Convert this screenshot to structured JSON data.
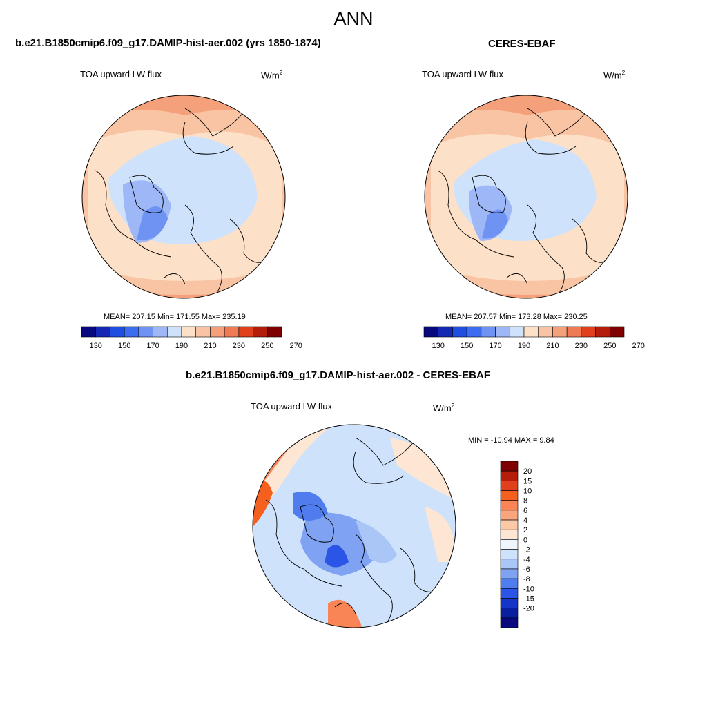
{
  "page": {
    "season": "ANN",
    "colors": {
      "deep_blue": "#08087f",
      "blue": "#1f4fe0",
      "light_blue": "#cfe2fb",
      "neutral": "#f4f9ff",
      "light_orange": "#fde0c8",
      "orange": "#f4a07a",
      "red": "#e0401c",
      "deep_red": "#7f0000",
      "coast": "#000000"
    }
  },
  "panels": {
    "model": {
      "title": "b.e21.B1850cmip6.f09_g17.DAMIP-hist-aer.002 (yrs 1850-1874)",
      "variable": "TOA upward LW flux",
      "units_base": "W/m",
      "units_exp": "2",
      "stats": "MEAN= 207.15  Min= 171.55  Max= 235.19",
      "colorbar_colors": [
        "#08087f",
        "#1428b4",
        "#1f4fe0",
        "#3c6df0",
        "#6f93f3",
        "#9db7f7",
        "#cfe2fb",
        "#fde0c8",
        "#f9c4a4",
        "#f4a07a",
        "#ef7a54",
        "#e0401c",
        "#b31d0a",
        "#7f0000"
      ],
      "colorbar_ticks": [
        "130",
        "150",
        "170",
        "190",
        "210",
        "230",
        "250",
        "270"
      ]
    },
    "obs": {
      "title": "CERES-EBAF",
      "variable": "TOA upward LW flux",
      "units_base": "W/m",
      "units_exp": "2",
      "stats": "MEAN= 207.57  Min= 173.28  Max= 230.25",
      "colorbar_colors": [
        "#08087f",
        "#1428b4",
        "#1f4fe0",
        "#3c6df0",
        "#6f93f3",
        "#9db7f7",
        "#cfe2fb",
        "#fde0c8",
        "#f9c4a4",
        "#f4a07a",
        "#ef7a54",
        "#e0401c",
        "#b31d0a",
        "#7f0000"
      ],
      "colorbar_ticks": [
        "130",
        "150",
        "170",
        "190",
        "210",
        "230",
        "250",
        "270"
      ]
    },
    "diff": {
      "title": "b.e21.B1850cmip6.f09_g17.DAMIP-hist-aer.002 - CERES-EBAF",
      "variable": "TOA upward LW flux",
      "units_base": "W/m",
      "units_exp": "2",
      "stats": "MIN = -10.94 MAX =   9.84",
      "colorbar_colors": [
        "#7f0000",
        "#b31d0a",
        "#e0401c",
        "#f5601f",
        "#f98556",
        "#f9a57e",
        "#fcc8a6",
        "#fde6d3",
        "#eef5fd",
        "#cfe2fb",
        "#a9c6f7",
        "#7fa2f3",
        "#4f7cee",
        "#2a55e6",
        "#1535c8",
        "#0a1ea0",
        "#08087f"
      ],
      "colorbar_ticks": [
        "20",
        "15",
        "10",
        "8",
        "6",
        "4",
        "2",
        "0",
        "-2",
        "-4",
        "-6",
        "-8",
        "-10",
        "-15",
        "-20"
      ]
    }
  }
}
